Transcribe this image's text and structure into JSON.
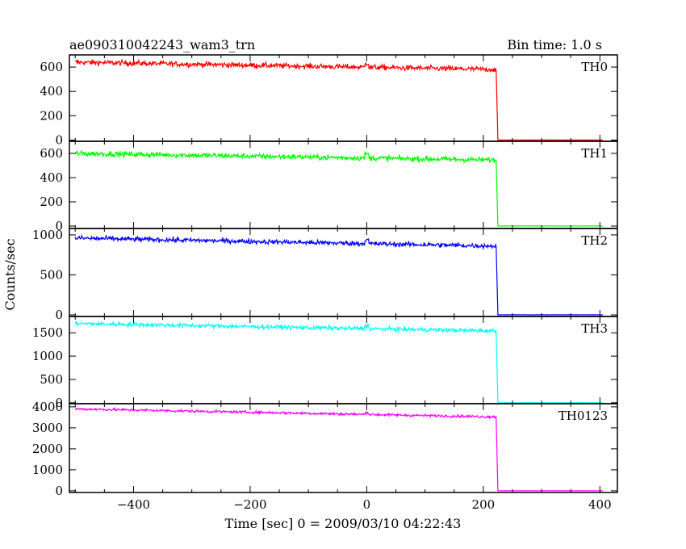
{
  "chart_data": {
    "type": "line",
    "title": "ae090310042243_wam3_trn",
    "bin_time": "Bin time: 1.0 s",
    "xlabel": "Time [sec] 0 = 2009/03/10 04:22:43",
    "ylabel": "Counts/sec",
    "xlim": [
      -510,
      430
    ],
    "x_ticks": [
      -400,
      -200,
      0,
      200,
      400
    ],
    "grid": false,
    "step_time": 222,
    "series": [
      {
        "name": "TH0",
        "color": "#ff0000",
        "ylim": [
          -10,
          700
        ],
        "y_ticks": [
          0,
          200,
          400,
          600
        ],
        "level_start": 640,
        "level_end": 580,
        "noise": 22,
        "after_step": 0
      },
      {
        "name": "TH1",
        "color": "#00ff00",
        "ylim": [
          -20,
          700
        ],
        "y_ticks": [
          0,
          200,
          400,
          600
        ],
        "level_start": 600,
        "level_end": 545,
        "noise": 22,
        "after_step": 0
      },
      {
        "name": "TH2",
        "color": "#0000ff",
        "ylim": [
          -20,
          1080
        ],
        "y_ticks": [
          0,
          500,
          1000
        ],
        "level_start": 960,
        "level_end": 860,
        "noise": 30,
        "after_step": 0
      },
      {
        "name": "TH3",
        "color": "#00ffff",
        "ylim": [
          -20,
          1850
        ],
        "y_ticks": [
          0,
          500,
          1000,
          1500
        ],
        "level_start": 1700,
        "level_end": 1540,
        "noise": 45,
        "after_step": 0
      },
      {
        "name": "TH0123",
        "color": "#ff00ff",
        "ylim": [
          -80,
          4150
        ],
        "y_ticks": [
          0,
          1000,
          2000,
          3000,
          4000
        ],
        "level_start": 3900,
        "level_end": 3520,
        "noise": 60,
        "after_step": 0
      }
    ]
  }
}
